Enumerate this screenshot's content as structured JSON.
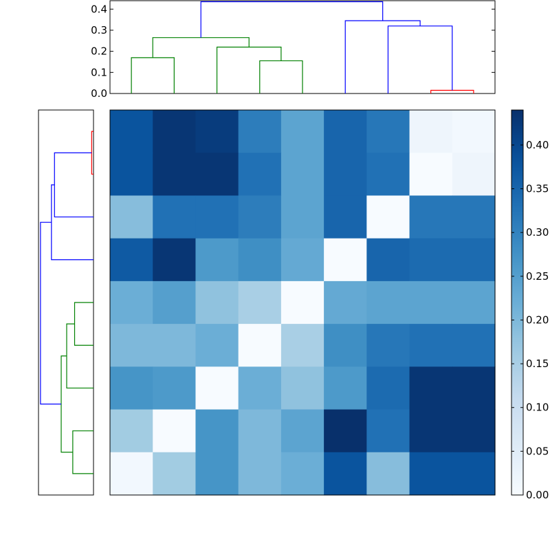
{
  "chart_data": {
    "type": "heatmap",
    "colormap": "Blues",
    "vmin": 0.0,
    "vmax": 0.44,
    "n": 9,
    "matrix": [
      [
        0.38,
        0.43,
        0.42,
        0.31,
        0.24,
        0.35,
        0.32,
        0.02,
        0.01
      ],
      [
        0.38,
        0.43,
        0.43,
        0.33,
        0.24,
        0.35,
        0.33,
        0.0,
        0.02
      ],
      [
        0.19,
        0.33,
        0.33,
        0.31,
        0.24,
        0.35,
        0.0,
        0.32,
        0.32
      ],
      [
        0.37,
        0.43,
        0.26,
        0.28,
        0.23,
        0.0,
        0.35,
        0.34,
        0.34
      ],
      [
        0.22,
        0.25,
        0.18,
        0.15,
        0.0,
        0.23,
        0.24,
        0.24,
        0.24
      ],
      [
        0.2,
        0.2,
        0.22,
        0.0,
        0.15,
        0.28,
        0.32,
        0.33,
        0.33
      ],
      [
        0.27,
        0.26,
        0.0,
        0.22,
        0.18,
        0.26,
        0.34,
        0.43,
        0.43
      ],
      [
        0.16,
        0.0,
        0.27,
        0.2,
        0.24,
        0.44,
        0.33,
        0.43,
        0.43
      ],
      [
        0.01,
        0.16,
        0.27,
        0.2,
        0.22,
        0.38,
        0.19,
        0.38,
        0.38
      ]
    ],
    "colorbar": {
      "ticks": [
        "0.00",
        "0.05",
        "0.10",
        "0.15",
        "0.20",
        "0.25",
        "0.30",
        "0.35",
        "0.40"
      ]
    },
    "top_dendrogram": {
      "yticks": [
        "0.0",
        "0.1",
        "0.2",
        "0.3",
        "0.4"
      ],
      "ylim": [
        0,
        0.44
      ],
      "links": [
        {
          "left": 0,
          "right": 1,
          "height": 0.17,
          "color": "#008000"
        },
        {
          "left": 3,
          "right": 4,
          "height": 0.155,
          "color": "#008000"
        },
        {
          "left": 2,
          "right": 3.5,
          "height": 0.22,
          "color": "#008000"
        },
        {
          "left": 0.5,
          "right": 2.75,
          "height": 0.265,
          "color": "#008000"
        },
        {
          "left": 7,
          "right": 8,
          "height": 0.015,
          "color": "#ff0000"
        },
        {
          "left": 6,
          "right": 7.5,
          "height": 0.32,
          "color": "#0000ff"
        },
        {
          "left": 5,
          "right": 6.75,
          "height": 0.345,
          "color": "#0000ff"
        },
        {
          "left": 1.625,
          "right": 5.875,
          "height": 0.435,
          "color": "#0000ff"
        }
      ]
    },
    "left_dendrogram": {
      "xlim": [
        0,
        0.44
      ],
      "links": [
        {
          "top": 0,
          "bottom": 1,
          "height": 0.015,
          "color": "#ff0000"
        },
        {
          "top": 0.5,
          "bottom": 2,
          "height": 0.32,
          "color": "#0000ff"
        },
        {
          "top": 1.25,
          "bottom": 3,
          "height": 0.345,
          "color": "#0000ff"
        },
        {
          "top": 4,
          "bottom": 5,
          "height": 0.155,
          "color": "#008000"
        },
        {
          "top": 4.5,
          "bottom": 6,
          "height": 0.22,
          "color": "#008000"
        },
        {
          "top": 7,
          "bottom": 8,
          "height": 0.17,
          "color": "#008000"
        },
        {
          "top": 5.25,
          "bottom": 7.5,
          "height": 0.265,
          "color": "#008000"
        },
        {
          "top": 2.125,
          "bottom": 6.375,
          "height": 0.435,
          "color": "#0000ff"
        }
      ]
    }
  }
}
